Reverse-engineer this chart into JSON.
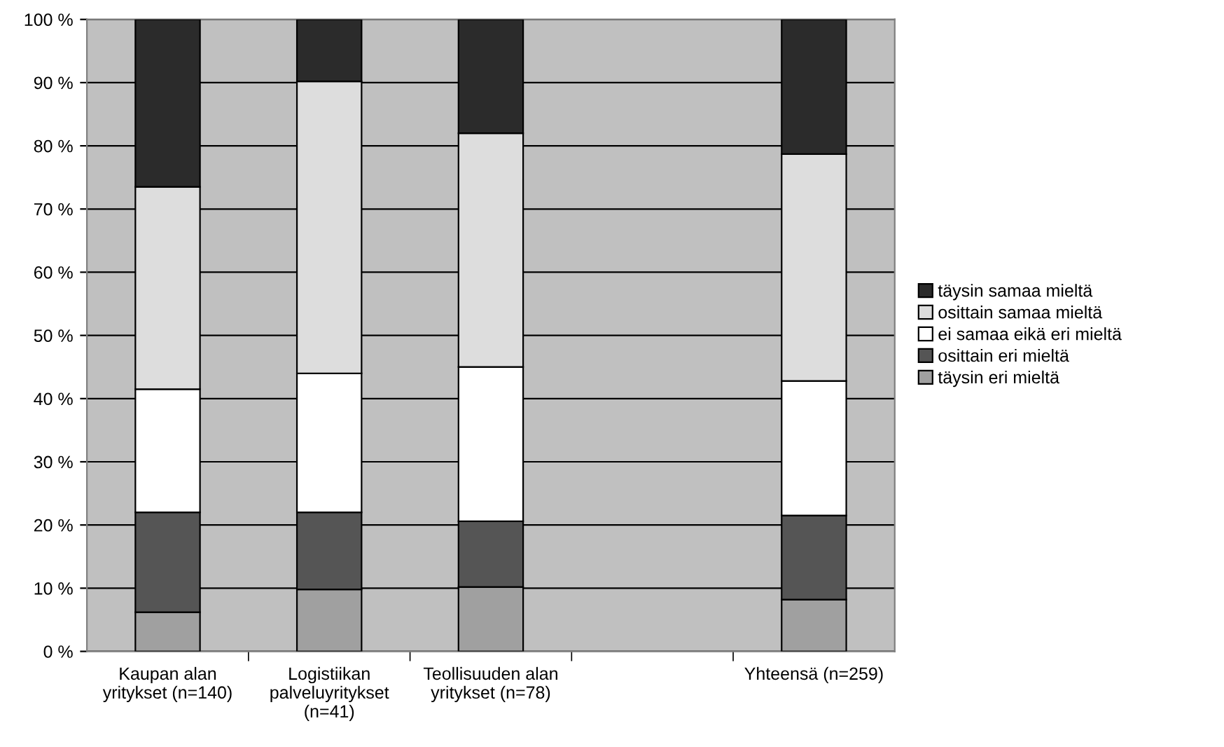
{
  "chart_data": {
    "type": "bar",
    "stacked": true,
    "categories": [
      "Kaupan alan\nyritykset (n=140)",
      "Logistiikan\npalveluyritykset\n(n=41)",
      "Teollisuuden alan\nyritykset (n=78)",
      null,
      "Yhteensä (n=259)"
    ],
    "series": [
      {
        "name": "täysin eri mieltä",
        "color": "#a0a0a0",
        "values": [
          6.2,
          9.8,
          10.2,
          null,
          8.2
        ]
      },
      {
        "name": "osittain eri mieltä",
        "color": "#555555",
        "values": [
          15.8,
          12.2,
          10.4,
          null,
          13.3
        ]
      },
      {
        "name": "ei samaa eikä eri mieltä",
        "color": "#ffffff",
        "values": [
          19.5,
          22.0,
          24.4,
          null,
          21.3
        ]
      },
      {
        "name": "osittain samaa mieltä",
        "color": "#dddddd",
        "values": [
          32.0,
          46.2,
          37.0,
          null,
          35.9
        ]
      },
      {
        "name": "täysin samaa mieltä",
        "color": "#2b2b2b",
        "values": [
          26.5,
          9.8,
          18.0,
          null,
          21.3
        ]
      }
    ],
    "ylim": [
      0,
      100
    ],
    "yticks": [
      {
        "value": 0,
        "label": "0 %"
      },
      {
        "value": 10,
        "label": "10 %"
      },
      {
        "value": 20,
        "label": "20 %"
      },
      {
        "value": 30,
        "label": "30 %"
      },
      {
        "value": 40,
        "label": "40 %"
      },
      {
        "value": 50,
        "label": "50 %"
      },
      {
        "value": 60,
        "label": "60 %"
      },
      {
        "value": 70,
        "label": "70 %"
      },
      {
        "value": 80,
        "label": "80 %"
      },
      {
        "value": 90,
        "label": "90 %"
      },
      {
        "value": 100,
        "label": "100 %"
      }
    ],
    "grid": "y",
    "legend": "right"
  }
}
